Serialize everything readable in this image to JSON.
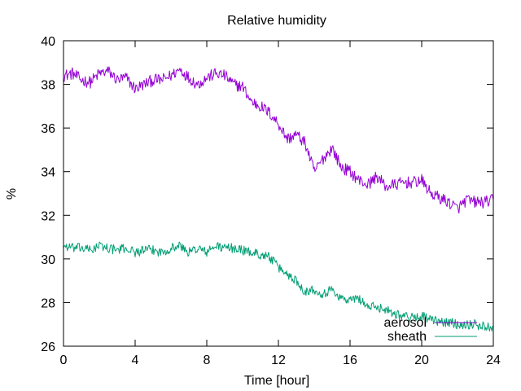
{
  "chart_data": {
    "type": "line",
    "title": "Relative humidity",
    "xlabel": "Time [hour]",
    "ylabel": "%",
    "xlim": [
      0,
      24
    ],
    "ylim": [
      26,
      40
    ],
    "xticks": [
      0,
      4,
      8,
      12,
      16,
      20,
      24
    ],
    "yticks": [
      26,
      28,
      30,
      32,
      34,
      36,
      38,
      40
    ],
    "grid": false,
    "legend_position": "bottom-right",
    "series": [
      {
        "name": "aerosol",
        "color": "#9400d3",
        "x": [
          0,
          0.5,
          1,
          1.5,
          2,
          2.5,
          3,
          3.5,
          4,
          4.5,
          5,
          5.5,
          6,
          6.5,
          7,
          7.5,
          8,
          8.5,
          9,
          9.5,
          10,
          10.5,
          11,
          11.5,
          12,
          12.5,
          13,
          13.5,
          14,
          14.5,
          15,
          15.5,
          16,
          16.5,
          17,
          17.5,
          18,
          18.5,
          19,
          19.5,
          20,
          20.5,
          21,
          21.5,
          22,
          22.5,
          23,
          23.5,
          24
        ],
        "values": [
          38.4,
          38.5,
          38.2,
          38.1,
          38.5,
          38.6,
          38.2,
          38.3,
          37.8,
          38.0,
          38.2,
          38.2,
          38.4,
          38.7,
          38.3,
          38.0,
          38.3,
          38.5,
          38.4,
          38.0,
          37.9,
          37.2,
          37.0,
          36.7,
          36.2,
          35.5,
          35.7,
          35.3,
          34.0,
          34.6,
          35.1,
          34.2,
          34.0,
          33.6,
          33.4,
          33.8,
          33.3,
          33.4,
          33.5,
          33.5,
          33.6,
          33.0,
          32.8,
          32.6,
          32.3,
          32.7,
          32.6,
          32.6,
          32.7
        ]
      },
      {
        "name": "sheath",
        "color": "#009e73",
        "x": [
          0,
          0.5,
          1,
          1.5,
          2,
          2.5,
          3,
          3.5,
          4,
          4.5,
          5,
          5.5,
          6,
          6.5,
          7,
          7.5,
          8,
          8.5,
          9,
          9.5,
          10,
          10.5,
          11,
          11.5,
          12,
          12.5,
          13,
          13.5,
          14,
          14.5,
          15,
          15.5,
          16,
          16.5,
          17,
          17.5,
          18,
          18.5,
          19,
          19.5,
          20,
          20.5,
          21,
          21.5,
          22,
          22.5,
          23,
          23.5,
          24
        ],
        "values": [
          30.6,
          30.5,
          30.5,
          30.4,
          30.6,
          30.5,
          30.4,
          30.5,
          30.3,
          30.4,
          30.4,
          30.3,
          30.5,
          30.6,
          30.3,
          30.5,
          30.3,
          30.6,
          30.5,
          30.5,
          30.4,
          30.3,
          30.2,
          30.1,
          29.6,
          29.3,
          29.0,
          28.5,
          28.6,
          28.4,
          28.6,
          28.2,
          28.1,
          28.2,
          27.8,
          27.8,
          27.7,
          27.5,
          27.4,
          27.3,
          27.4,
          27.2,
          27.1,
          27.1,
          27.0,
          27.0,
          27.0,
          26.9,
          26.9
        ]
      }
    ]
  }
}
